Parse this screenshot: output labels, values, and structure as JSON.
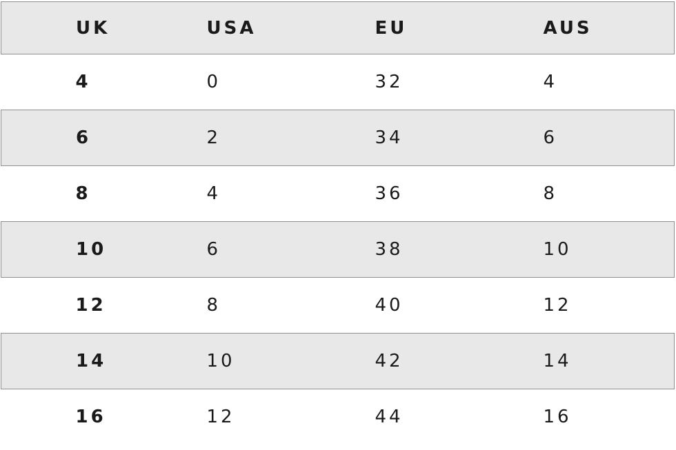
{
  "table": {
    "name": "size-conversion-table",
    "headers": [
      "UK",
      "USA",
      "EU",
      "AUS"
    ],
    "rows": [
      [
        "4",
        "0",
        "32",
        "4"
      ],
      [
        "6",
        "2",
        "34",
        "6"
      ],
      [
        "8",
        "4",
        "36",
        "8"
      ],
      [
        "10",
        "6",
        "38",
        "10"
      ],
      [
        "12",
        "8",
        "40",
        "12"
      ],
      [
        "14",
        "10",
        "42",
        "14"
      ],
      [
        "16",
        "12",
        "44",
        "16"
      ]
    ]
  },
  "colors": {
    "stripe": "#e8e8e8",
    "border": "#8f8f8f",
    "text": "#1a1a1a",
    "bg": "#ffffff"
  }
}
